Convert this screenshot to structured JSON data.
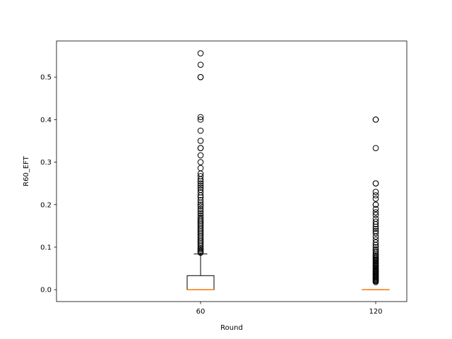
{
  "chart_data": {
    "type": "box",
    "xlabel": "Round",
    "ylabel": "R60_EFT",
    "ylim": [
      -0.028,
      0.585
    ],
    "y_ticks": [
      {
        "value": 0.0,
        "label": "0.0"
      },
      {
        "value": 0.1,
        "label": "0.1"
      },
      {
        "value": 0.2,
        "label": "0.2"
      },
      {
        "value": 0.3,
        "label": "0.3"
      },
      {
        "value": 0.4,
        "label": "0.4"
      },
      {
        "value": 0.5,
        "label": "0.5"
      }
    ],
    "categories": [
      "60",
      "120"
    ],
    "boxes": [
      {
        "category": "60",
        "whisker_low": 0.0,
        "q1": 0.0,
        "median": 0.0,
        "q3": 0.033,
        "whisker_high": 0.084,
        "outliers": [
          0.556,
          0.529,
          0.5,
          0.5,
          0.406,
          0.4,
          0.374,
          0.35,
          0.333,
          0.333,
          0.316,
          0.3,
          0.286,
          0.273,
          0.267,
          0.26,
          0.255,
          0.25,
          0.245,
          0.24,
          0.235,
          0.229,
          0.222,
          0.217,
          0.211,
          0.205,
          0.2,
          0.196,
          0.19,
          0.185,
          0.18,
          0.175,
          0.17,
          0.166,
          0.162,
          0.158,
          0.154,
          0.15,
          0.146,
          0.142,
          0.138,
          0.134,
          0.13,
          0.126,
          0.122,
          0.118,
          0.114,
          0.11,
          0.106,
          0.102,
          0.098,
          0.095,
          0.092,
          0.089,
          0.087
        ]
      },
      {
        "category": "120",
        "whisker_low": 0.0,
        "q1": 0.0,
        "median": 0.0,
        "q3": 0.0,
        "whisker_high": 0.0,
        "outliers": [
          0.4,
          0.4,
          0.333,
          0.25,
          0.25,
          0.23,
          0.222,
          0.214,
          0.2,
          0.2,
          0.19,
          0.182,
          0.176,
          0.167,
          0.16,
          0.154,
          0.148,
          0.143,
          0.138,
          0.133,
          0.125,
          0.118,
          0.111,
          0.105,
          0.1,
          0.095,
          0.091,
          0.087,
          0.083,
          0.08,
          0.077,
          0.074,
          0.071,
          0.069,
          0.067,
          0.064,
          0.062,
          0.06,
          0.057,
          0.055,
          0.053,
          0.05,
          0.048,
          0.046,
          0.044,
          0.042,
          0.04,
          0.038,
          0.036,
          0.034,
          0.032,
          0.03,
          0.028,
          0.026,
          0.024,
          0.022,
          0.02,
          0.018
        ]
      }
    ],
    "colors": {
      "box": "#000000",
      "median": "#ff7f0e",
      "outlier": "#000000",
      "background": "#ffffff"
    },
    "grid": false
  }
}
